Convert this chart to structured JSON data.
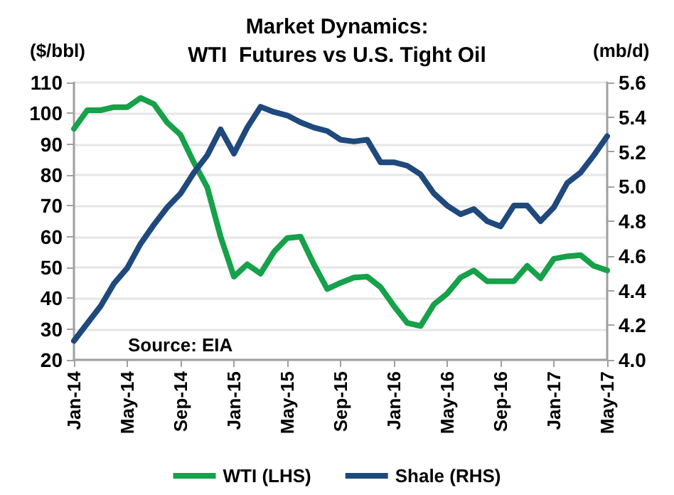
{
  "chart_data": {
    "type": "line",
    "title": "Market Dynamics:\nWTI  Futures vs U.S. Tight Oil",
    "ylabel": "($/bbl)",
    "y2label": "(mb/d)",
    "annotations": [
      "Source: EIA"
    ],
    "categories": [
      "Jan-14",
      null,
      null,
      null,
      "May-14",
      null,
      null,
      null,
      "Sep-14",
      null,
      null,
      null,
      "Jan-15",
      null,
      null,
      null,
      "May-15",
      null,
      null,
      null,
      "Sep-15",
      null,
      null,
      null,
      "Jan-16",
      null,
      null,
      null,
      "May-16",
      null,
      null,
      null,
      "Sep-16",
      null,
      null,
      null,
      "Jan-17",
      null,
      null,
      null,
      "May-17"
    ],
    "series": [
      {
        "name": "WTI (LHS)",
        "color": "#16a14a",
        "values": [
          95,
          101,
          101,
          102,
          102,
          105,
          103,
          97,
          93,
          84,
          76,
          60,
          47,
          51,
          48,
          55,
          59.5,
          60,
          51,
          43,
          45,
          46.7,
          47,
          43.6,
          37.5,
          32,
          31,
          38,
          41.5,
          46.7,
          49,
          45.5,
          45.5,
          45.5,
          50.5,
          46.5,
          52.8,
          53.6,
          54,
          50.5,
          49
        ]
      },
      {
        "name": "Shale (RHS)",
        "color": "#1f497d",
        "axis": "y2",
        "values": [
          4.11,
          4.21,
          4.31,
          4.44,
          4.53,
          4.67,
          4.78,
          4.88,
          4.96,
          5.08,
          5.18,
          5.33,
          5.19,
          5.34,
          5.46,
          5.43,
          5.41,
          5.37,
          5.34,
          5.32,
          5.27,
          5.26,
          5.27,
          5.14,
          5.14,
          5.12,
          5.07,
          4.96,
          4.89,
          4.84,
          4.87,
          4.8,
          4.77,
          4.89,
          4.89,
          4.8,
          4.88,
          5.02,
          5.08,
          5.18,
          5.29
        ]
      }
    ],
    "ylim": [
      20,
      110
    ],
    "yticks": [
      20,
      30,
      40,
      50,
      60,
      70,
      80,
      90,
      100,
      110
    ],
    "y2lim": [
      4.0,
      5.6
    ],
    "y2ticks": [
      {
        "value": 4.0,
        "label": "4.0"
      },
      {
        "value": 4.2,
        "label": "4.2"
      },
      {
        "value": 4.4,
        "label": "4.4"
      },
      {
        "value": 4.6,
        "label": "4.6"
      },
      {
        "value": 4.8,
        "label": "4.8"
      },
      {
        "value": 5.0,
        "label": "5.0"
      },
      {
        "value": 5.2,
        "label": "5.2"
      },
      {
        "value": 5.4,
        "label": "5.4"
      },
      {
        "value": 5.6,
        "label": "5.6"
      }
    ],
    "grid": "y",
    "legend": "bottom",
    "marker": "none",
    "line_style": "solid"
  }
}
